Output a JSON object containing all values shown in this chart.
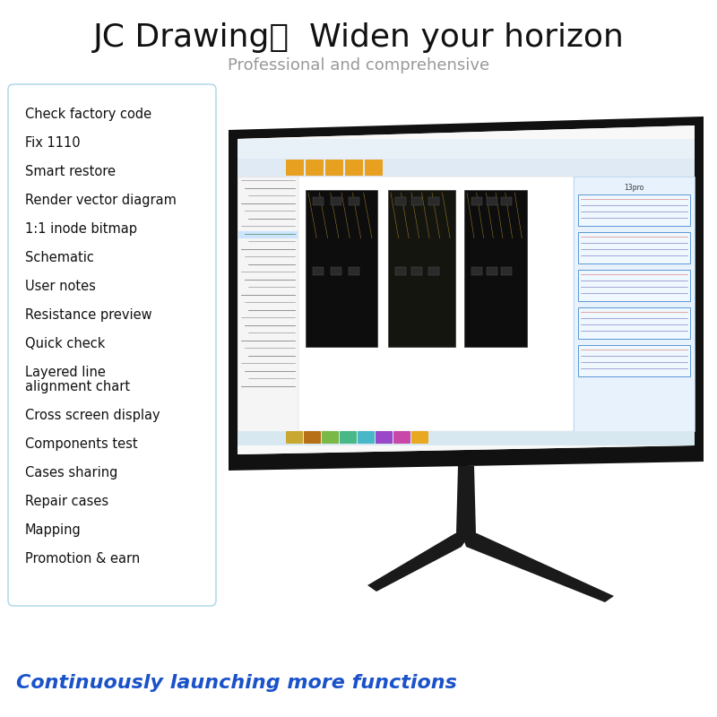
{
  "title": "JC Drawing，  Widen your horizon",
  "subtitle": "Professional and comprehensive",
  "features": [
    "Check factory code",
    "Fix 1110",
    "Smart restore",
    "Render vector diagram",
    "1:1 inode bitmap",
    "Schematic",
    "User notes",
    "Resistance preview",
    "Quick check",
    "Layered line\nalignment chart",
    "Cross screen display",
    "Components test",
    "Cases sharing",
    "Repair cases",
    "Mapping",
    "Promotion & earn"
  ],
  "bottom_text": "Continuously launching more functions",
  "bg_color": "#ffffff",
  "title_color": "#111111",
  "subtitle_color": "#999999",
  "feature_color": "#111111",
  "box_border_color": "#a8d4e8",
  "bottom_text_color": "#1a52c9",
  "taskbar_colors": [
    "#c8a830",
    "#b87018",
    "#7ab848",
    "#48b888",
    "#48b8c8",
    "#9848c8",
    "#c848a8",
    "#e8a820"
  ],
  "monitor_neck_color": "#1a1a1a",
  "monitor_bezel_color": "#111111"
}
